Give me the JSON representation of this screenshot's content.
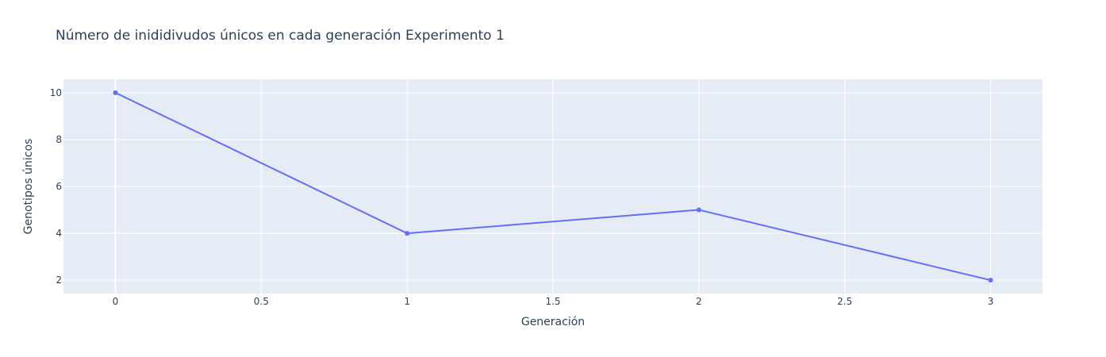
{
  "chart_data": {
    "type": "line",
    "title": "Número de inididivudos únicos en cada generación Experimento 1",
    "xlabel": "Generación",
    "ylabel": "Genotipos únicos",
    "x": [
      0,
      1,
      2,
      3
    ],
    "series": [
      {
        "values": [
          10,
          4,
          5,
          2
        ],
        "color": "#636efa"
      }
    ],
    "xlim": [
      -0.178,
      3.178
    ],
    "ylim": [
      1.43,
      10.57
    ],
    "xticks": [
      0,
      0.5,
      1,
      1.5,
      2,
      2.5,
      3
    ],
    "xtick_labels": [
      "0",
      "0.5",
      "1",
      "1.5",
      "2",
      "2.5",
      "3"
    ],
    "yticks": [
      2,
      4,
      6,
      8,
      10
    ],
    "ytick_labels": [
      "2",
      "4",
      "6",
      "8",
      "10"
    ],
    "grid": true,
    "plot_bgcolor": "#e5ecf6",
    "grid_color": "#ffffff",
    "text_color": "#2a3f5f"
  }
}
